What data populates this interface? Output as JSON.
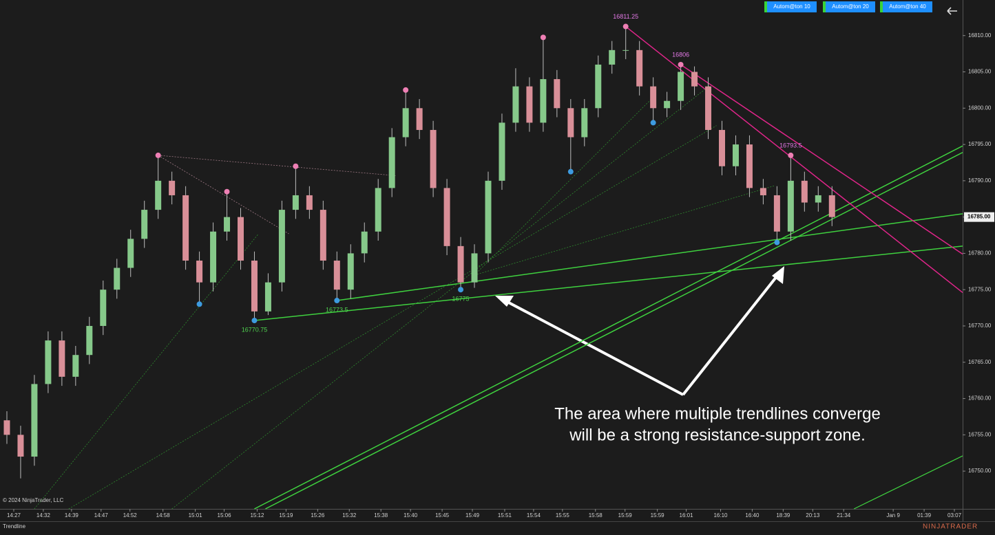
{
  "chart_data": {
    "type": "candlestick",
    "xlim": [
      0,
      70
    ],
    "ylim": [
      16744.8,
      16814.9
    ],
    "xticks": [
      {
        "value": 1.0,
        "label": "14:27"
      },
      {
        "value": 3.15,
        "label": "14:32"
      },
      {
        "value": 5.2,
        "label": "14:39"
      },
      {
        "value": 7.35,
        "label": "14:47"
      },
      {
        "value": 9.45,
        "label": "14:52"
      },
      {
        "value": 11.85,
        "label": "14:58"
      },
      {
        "value": 14.2,
        "label": "15:01"
      },
      {
        "value": 16.3,
        "label": "15:06"
      },
      {
        "value": 18.7,
        "label": "15:12"
      },
      {
        "value": 20.8,
        "label": "15:19"
      },
      {
        "value": 23.1,
        "label": "15:26"
      },
      {
        "value": 25.4,
        "label": "15:32"
      },
      {
        "value": 27.7,
        "label": "15:38"
      },
      {
        "value": 29.85,
        "label": "15:40"
      },
      {
        "value": 32.15,
        "label": "15:45"
      },
      {
        "value": 34.35,
        "label": "15:49"
      },
      {
        "value": 36.7,
        "label": "15:51"
      },
      {
        "value": 38.8,
        "label": "15:54"
      },
      {
        "value": 40.9,
        "label": "15:55"
      },
      {
        "value": 43.3,
        "label": "15:58"
      },
      {
        "value": 45.45,
        "label": "15:59"
      },
      {
        "value": 47.8,
        "label": "15:59"
      },
      {
        "value": 49.9,
        "label": "16:01"
      },
      {
        "value": 52.4,
        "label": "16:10"
      },
      {
        "value": 54.7,
        "label": "16:40"
      },
      {
        "value": 56.95,
        "label": "18:39"
      },
      {
        "value": 59.1,
        "label": "20:13"
      },
      {
        "value": 61.35,
        "label": "21:34"
      },
      {
        "value": 64.95,
        "label": "Jan 9"
      },
      {
        "value": 67.2,
        "label": "01:39"
      },
      {
        "value": 69.4,
        "label": "03:07"
      }
    ],
    "yticks": [
      {
        "value": 16750,
        "label": "16750.00"
      },
      {
        "value": 16755,
        "label": "16755.00"
      },
      {
        "value": 16760,
        "label": "16760.00"
      },
      {
        "value": 16765,
        "label": "16765.00"
      },
      {
        "value": 16770,
        "label": "16770.00"
      },
      {
        "value": 16775,
        "label": "16775.00"
      },
      {
        "value": 16780,
        "label": "16780.00"
      },
      {
        "value": 16785,
        "label": "16785.00"
      },
      {
        "value": 16790,
        "label": "16790.00"
      },
      {
        "value": 16795,
        "label": "16795.00"
      },
      {
        "value": 16800,
        "label": "16800.00"
      },
      {
        "value": 16805,
        "label": "16805.00"
      },
      {
        "value": 16810,
        "label": "16810.00"
      }
    ],
    "last_price": {
      "value": 16785,
      "label": "16785.00"
    },
    "up_color": "#86c98a",
    "down_color": "#d98f98",
    "open": [
      16757,
      16755,
      16752,
      16762,
      16768,
      16763,
      16766,
      16770,
      16775,
      16778,
      16782,
      16786,
      16790,
      16788,
      16779,
      16776,
      16783,
      16785,
      16779,
      16772,
      16776,
      16786,
      16788,
      16786,
      16779,
      16775,
      16780,
      16783,
      16789,
      16796,
      16800,
      16797,
      16789,
      16781,
      16776,
      16780,
      16790,
      16798,
      16803,
      16798,
      16804,
      16800,
      16796,
      16800,
      16806,
      16808,
      16808,
      16803,
      16800,
      16801,
      16805,
      16803,
      16797,
      16792,
      16795,
      16789,
      16788,
      16783,
      16790,
      16787,
      16788
    ],
    "high": [
      16758.25,
      16756.25,
      16763.25,
      16769.25,
      16769.25,
      16767.25,
      16771.25,
      16776.25,
      16779.25,
      16783.25,
      16787.25,
      16793.5,
      16791.25,
      16789.25,
      16780.25,
      16784.25,
      16788.5,
      16786.25,
      16780.25,
      16777.25,
      16787.25,
      16792,
      16789.25,
      16787.25,
      16780.25,
      16781.25,
      16784.25,
      16790.25,
      16797.25,
      16802.5,
      16801.25,
      16798.25,
      16790.25,
      16782.25,
      16781.25,
      16791.25,
      16799.25,
      16805.5,
      16804.25,
      16809.75,
      16805.25,
      16801.25,
      16801.25,
      16807.25,
      16809.25,
      16811.25,
      16809.25,
      16804.25,
      16802.25,
      16806,
      16805.75,
      16804.25,
      16798.25,
      16796.25,
      16796.25,
      16790.25,
      16789.25,
      16793.5,
      16791.25,
      16789.25,
      16789.25
    ],
    "low": [
      16753.75,
      16749,
      16750.75,
      16760.75,
      16761.75,
      16761.75,
      16764.75,
      16768.75,
      16773.75,
      16776.75,
      16780.75,
      16784.75,
      16786.75,
      16777.75,
      16773,
      16774.75,
      16781.75,
      16777.75,
      16770.75,
      16771.5,
      16774.75,
      16784.75,
      16784.75,
      16777.75,
      16773.5,
      16773.75,
      16778.75,
      16781.75,
      16787.75,
      16794.75,
      16795.75,
      16787.75,
      16779.75,
      16775,
      16775.25,
      16778.75,
      16788.75,
      16796.75,
      16796.75,
      16796.75,
      16798.75,
      16791.25,
      16794.75,
      16798.75,
      16804.75,
      16806.75,
      16801.75,
      16798,
      16798.75,
      16799.75,
      16801.75,
      16795.75,
      16790.75,
      16790.75,
      16787.75,
      16786.75,
      16781.5,
      16781.75,
      16785.75,
      16785.75,
      16783.75
    ],
    "close": [
      16755,
      16752,
      16762,
      16768,
      16763,
      16766,
      16770,
      16775,
      16778,
      16782,
      16786,
      16790,
      16788,
      16779,
      16776,
      16783,
      16785,
      16779,
      16772,
      16776,
      16786,
      16788,
      16786,
      16779,
      16775,
      16780,
      16783,
      16789,
      16796,
      16800,
      16797,
      16789,
      16781,
      16776,
      16780,
      16790,
      16798,
      16803,
      16798,
      16804,
      16800,
      16796,
      16800,
      16806,
      16808,
      16808,
      16803,
      16800,
      16801,
      16805,
      16803,
      16797,
      16792,
      16795,
      16789,
      16788,
      16783,
      16790,
      16787,
      16788,
      16785
    ],
    "swing_highs": {
      "color": "#ee7fb4",
      "x": [
        11.5,
        16.5,
        21.5,
        29.5,
        39.5
      ],
      "values": [
        16793.5,
        16788.5,
        16792,
        16802.5,
        16809.75
      ]
    },
    "swing_highs_labeled": {
      "color": "#ee7fb4",
      "label_color": "#e57ae8",
      "x": [
        45.5,
        49.5,
        57.5
      ],
      "values": [
        16811.25,
        16806,
        16793.5
      ]
    },
    "swing_lows": {
      "color": "#3d9be0",
      "x": [
        14.5,
        41.5,
        47.5,
        56.5
      ],
      "values": [
        16773,
        16791.25,
        16798,
        16781.5
      ]
    },
    "swing_lows_labeled": {
      "color": "#3d9be0",
      "label_color": "#4fd34f",
      "x": [
        18.5,
        24.5,
        33.5
      ],
      "values": [
        16770.75,
        16773.5,
        16775
      ]
    },
    "trendlines": [
      {
        "color": "#3fd23f",
        "width": 1.5,
        "dash": "none",
        "x": [
          18.5,
          70
        ],
        "values": [
          16770.75,
          16781
        ]
      },
      {
        "color": "#3fd23f",
        "width": 1.5,
        "dash": "none",
        "x": [
          24.5,
          70
        ],
        "values": [
          16773.5,
          16785.45
        ]
      },
      {
        "color": "#3fd23f",
        "width": 1.5,
        "dash": "none",
        "x": [
          18.5,
          70
        ],
        "values": [
          16744.8,
          16794.8
        ]
      },
      {
        "color": "#3fd23f",
        "width": 1.5,
        "dash": "none",
        "x": [
          19.3,
          70
        ],
        "values": [
          16744.8,
          16793.9
        ]
      },
      {
        "color": "#3fd23f",
        "width": 1.2,
        "dash": "none",
        "x": [
          62.1,
          70
        ],
        "values": [
          16744.8,
          16752.1
        ]
      },
      {
        "color": "#e0258a",
        "width": 1.5,
        "dash": "none",
        "x": [
          45.5,
          70
        ],
        "values": [
          16811.25,
          16774.6
        ]
      },
      {
        "color": "#e0258a",
        "width": 1.5,
        "dash": "none",
        "x": [
          49.5,
          70
        ],
        "values": [
          16806,
          16779.9
        ]
      },
      {
        "color": "#a07a86",
        "width": 0.8,
        "dash": "2 2",
        "x": [
          11.5,
          28.8
        ],
        "values": [
          16793.5,
          16790.7
        ]
      },
      {
        "color": "#a07a86",
        "width": 0.8,
        "dash": "2 2",
        "x": [
          11.5,
          21
        ],
        "values": [
          16793.5,
          16782.7
        ]
      },
      {
        "color": "#2e8a2e",
        "width": 0.8,
        "dash": "2 2",
        "x": [
          2.5,
          18.8
        ],
        "values": [
          16744.8,
          16782.7
        ]
      },
      {
        "color": "#2e8a2e",
        "width": 0.8,
        "dash": "2 2",
        "x": [
          5,
          52.1
        ],
        "values": [
          16744.8,
          16797.6
        ]
      },
      {
        "color": "#2e8a2e",
        "width": 0.8,
        "dash": "2 2",
        "x": [
          12.5,
          51.6
        ],
        "values": [
          16744.8,
          16803.1
        ]
      },
      {
        "color": "#2e8a2e",
        "width": 0.8,
        "dash": "2 2",
        "x": [
          34.5,
          56.3
        ],
        "values": [
          16777,
          16789.3
        ]
      },
      {
        "color": "#2e8a2e",
        "width": 0.8,
        "dash": "2 2",
        "x": [
          34.5,
          47.6
        ],
        "values": [
          16777,
          16801.7
        ]
      }
    ],
    "annotation": [
      "The area where multiple trendlines converge",
      "will be a strong resistance-support zone."
    ],
    "copyright": "© 2024 NinjaTrader, LLC",
    "tab": "Trendline",
    "brand": "NINJATRADER",
    "buttons": [
      "Autom@ton  10",
      "Autom@ton  20",
      "Autom@ton  40"
    ]
  }
}
